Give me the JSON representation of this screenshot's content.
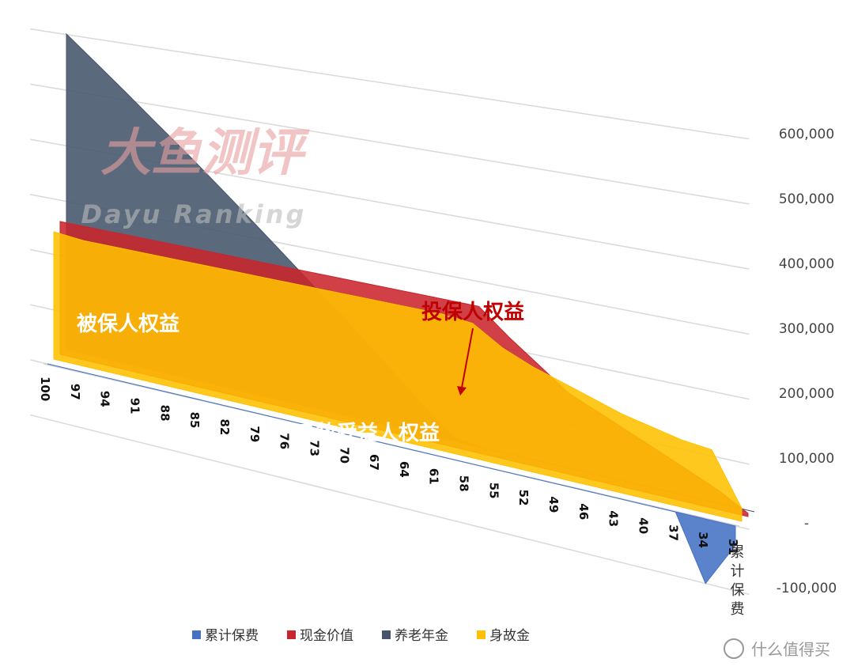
{
  "chart_data": {
    "type": "area3d",
    "categories": [
      "100",
      "97",
      "94",
      "91",
      "88",
      "85",
      "82",
      "79",
      "76",
      "73",
      "70",
      "67",
      "64",
      "61",
      "58",
      "55",
      "52",
      "49",
      "46",
      "43",
      "40",
      "37",
      "34",
      "31"
    ],
    "series": [
      {
        "name": "养老年金",
        "color": "#44546a",
        "values": [
          570000,
          526000,
          482000,
          438000,
          395000,
          351000,
          307000,
          263000,
          219000,
          175000,
          132000,
          88000,
          44000,
          5000,
          0,
          0,
          0,
          0,
          0,
          0,
          0,
          0,
          0,
          0
        ]
      },
      {
        "name": "现金价值",
        "color": "#c9252c",
        "values": [
          240000,
          240000,
          240000,
          240000,
          240000,
          240000,
          240000,
          240000,
          240000,
          240000,
          240000,
          240000,
          240000,
          240000,
          240000,
          200000,
          165000,
          130000,
          110000,
          90000,
          70000,
          50000,
          30000,
          5000
        ]
      },
      {
        "name": "身故金",
        "color": "#ffc000",
        "values": [
          230000,
          225000,
          225000,
          225000,
          225000,
          225000,
          225000,
          225000,
          225000,
          225000,
          225000,
          225000,
          225000,
          225000,
          220000,
          190000,
          170000,
          155000,
          140000,
          125000,
          115000,
          105000,
          100000,
          20000
        ]
      },
      {
        "name": "累计保费",
        "color": "#4472c4",
        "values": [
          0,
          0,
          0,
          0,
          0,
          0,
          0,
          0,
          0,
          0,
          0,
          0,
          0,
          0,
          0,
          0,
          0,
          0,
          0,
          0,
          0,
          0,
          -100000,
          -30000
        ]
      }
    ],
    "legend_order": [
      3,
      1,
      0,
      2
    ],
    "ylim": [
      -100000,
      600000
    ],
    "yticks": [
      {
        "value": -100000,
        "label": "-100,000"
      },
      {
        "value": 0,
        "label": "-"
      },
      {
        "value": 100000,
        "label": "100,000"
      },
      {
        "value": 200000,
        "label": "200,000"
      },
      {
        "value": 300000,
        "label": "300,000"
      },
      {
        "value": 400000,
        "label": "400,000"
      },
      {
        "value": 500000,
        "label": "500,000"
      },
      {
        "value": 600000,
        "label": "600,000"
      }
    ],
    "grid": true,
    "depth_axis_label": "累计保费",
    "annotations": [
      "被保人权益",
      "投保人权益",
      "身故受益人权益"
    ],
    "watermark": [
      "大鱼测评",
      "Dayu Ranking"
    ],
    "logo": "什么值得买"
  }
}
